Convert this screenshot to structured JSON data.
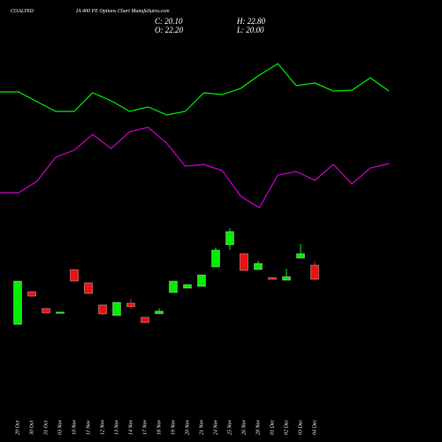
{
  "chart_data": {
    "type": "candlestick",
    "title": "COALIND",
    "subtitle": "IA 400  PE Options  Chart MunafaSutra.com",
    "ohlc_text": {
      "close": "C: 20.10",
      "open": "O: 22.20",
      "high": "H: 22.80",
      "low": "L: 20.00"
    },
    "categories": [
      "29 Oct",
      "30 Oct",
      "31 Oct",
      "03 Nov",
      "10 Nov",
      "11 Nov",
      "12 Nov",
      "13 Nov",
      "14 Nov",
      "17 Nov",
      "18 Nov",
      "19 Nov",
      "20 Nov",
      "21 Nov",
      "24 Nov",
      "25 Nov",
      "26 Nov",
      "28 Nov",
      "01 Dec",
      "02 Dec",
      "03 Dec",
      "04 Dec"
    ],
    "open": [
      13.38,
      18.25,
      15.75,
      15.23,
      21.54,
      19.57,
      16.28,
      14.7,
      16.54,
      14.44,
      14.96,
      18.12,
      18.78,
      19.04,
      21.94,
      25.23,
      23.91,
      21.54,
      20.36,
      19.96,
      23.25,
      22.2
    ],
    "high": [
      19.83,
      18.25,
      15.75,
      15.23,
      21.54,
      19.57,
      16.28,
      16.67,
      17.2,
      14.44,
      15.75,
      19.83,
      19.31,
      20.75,
      24.83,
      27.73,
      23.91,
      22.86,
      20.36,
      21.67,
      25.36,
      22.8
    ],
    "low": [
      13.38,
      17.59,
      15.09,
      15.23,
      19.83,
      17.99,
      14.7,
      14.7,
      15.62,
      13.65,
      14.96,
      18.12,
      18.78,
      19.04,
      21.94,
      24.44,
      21.41,
      21.54,
      20.09,
      19.96,
      23.25,
      20.0
    ],
    "close": [
      19.83,
      17.59,
      15.09,
      15.23,
      19.83,
      17.99,
      14.96,
      16.67,
      16.02,
      13.65,
      15.36,
      19.83,
      19.31,
      20.75,
      24.44,
      27.2,
      21.41,
      22.46,
      20.09,
      20.49,
      23.91,
      20.1
    ],
    "up_color": "#00ee00",
    "down_color": "#ee1111",
    "lines": [
      {
        "color": "#00ee00",
        "values": [
          47.99,
          47.99,
          46.54,
          45.09,
          45.09,
          47.86,
          46.67,
          45.09,
          45.75,
          44.57,
          45.09,
          47.86,
          47.59,
          48.52,
          50.49,
          52.2,
          48.91,
          49.31,
          48.12,
          48.25,
          50.09,
          48.12
        ]
      },
      {
        "color": "#cc00cc",
        "values": [
          32.99,
          32.99,
          34.7,
          38.25,
          39.31,
          41.67,
          39.57,
          42.07,
          42.73,
          40.36,
          36.94,
          37.2,
          36.28,
          32.46,
          30.75,
          35.62,
          36.15,
          34.83,
          37.2,
          34.31,
          36.67,
          37.33
        ]
      }
    ],
    "ylim": [
      11.67,
      59.04
    ]
  }
}
